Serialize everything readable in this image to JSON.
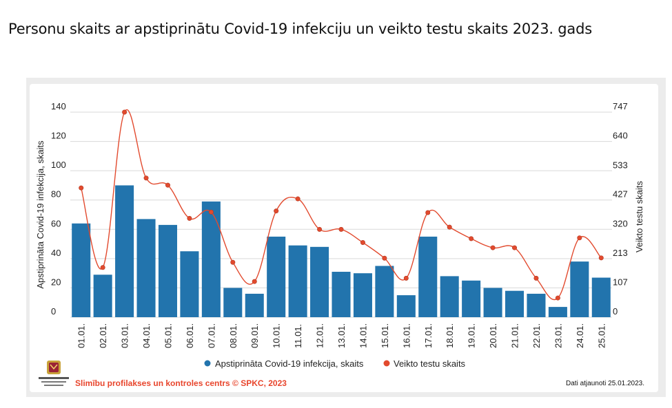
{
  "title": "Personu skaits ar apstiprinātu Covid-19 infekciju un veikto testu skaits 2023. gads",
  "footer": {
    "source": "Slimību profilakses un kontroles centrs © SPKC, 2023",
    "updated": "Dati atjaunoti 25.01.2023."
  },
  "colors": {
    "bar": "#2274ad",
    "line": "#e24a2e",
    "source": "#e8452c"
  },
  "chart_data": {
    "type": "bar+line",
    "categories": [
      "01.01.",
      "02.01.",
      "03.01.",
      "04.01.",
      "05.01.",
      "06.01.",
      "07.01.",
      "08.01.",
      "09.01.",
      "10.01.",
      "11.01.",
      "12.01.",
      "13.01.",
      "14.01.",
      "15.01.",
      "16.01.",
      "17.01.",
      "18.01.",
      "19.01.",
      "20.01.",
      "21.01.",
      "22.01.",
      "23.01.",
      "24.01.",
      "25.01."
    ],
    "ylabel_left": "Apstiprināta Covid-19 infekcija, skaits",
    "ylabel_right": "Veikto testu skaits",
    "yticks_left": [
      0,
      20,
      40,
      60,
      80,
      100,
      120,
      140
    ],
    "yticks_right": [
      0,
      107,
      213,
      320,
      427,
      533,
      640,
      747
    ],
    "ylim_left": [
      0,
      140
    ],
    "ylim_right": [
      0,
      747
    ],
    "series": [
      {
        "name": "Apstiprināta Covid-19 infekcija, skaits",
        "type": "bar",
        "axis": "left",
        "values": [
          64,
          29,
          90,
          67,
          63,
          45,
          79,
          20,
          16,
          55,
          49,
          48,
          31,
          30,
          35,
          15,
          55,
          28,
          25,
          20,
          18,
          16,
          7,
          38,
          27
        ]
      },
      {
        "name": "Veikto testu skaits",
        "type": "line",
        "axis": "right",
        "values": [
          471,
          181,
          747,
          507,
          481,
          360,
          383,
          200,
          130,
          387,
          431,
          320,
          320,
          272,
          215,
          142,
          381,
          328,
          286,
          253,
          253,
          142,
          70,
          289,
          216
        ]
      }
    ],
    "grid": true,
    "legend_position": "bottom"
  }
}
